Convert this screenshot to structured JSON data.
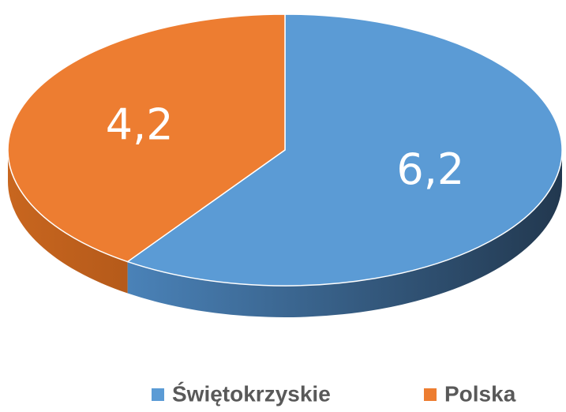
{
  "chart_data": {
    "type": "pie3d",
    "categories": [
      "Świętokrzyskie",
      "Polska"
    ],
    "values": [
      6.2,
      4.2
    ],
    "value_labels": [
      "6,2",
      "4,2"
    ],
    "colors": [
      "#5b9bd5",
      "#ed7d31"
    ],
    "legend": "bottom"
  }
}
